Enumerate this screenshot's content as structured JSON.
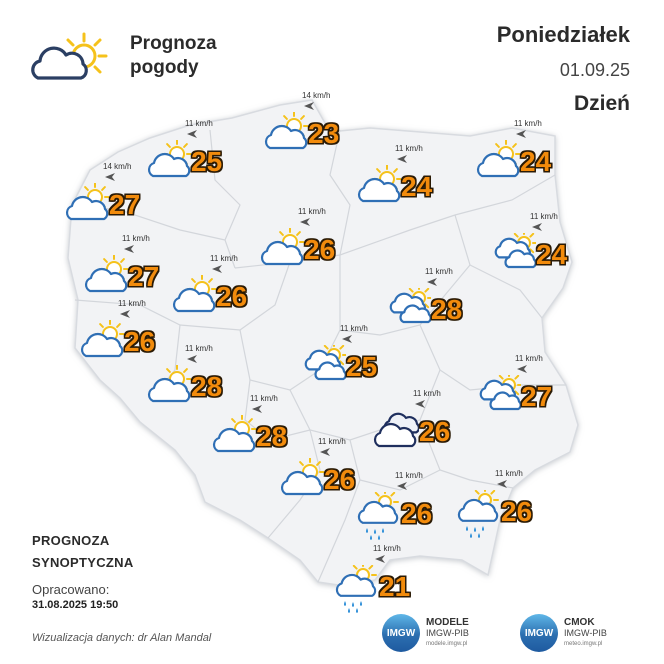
{
  "header": {
    "title_line1": "Prognoza",
    "title_line2": "pogody",
    "title_icon": "partly-cloudy-icon",
    "day": "Poniedziałek",
    "date": "01.09.25",
    "period": "Dzień"
  },
  "footer": {
    "synoptic_line1": "PROGNOZA",
    "synoptic_line2": "SYNOPTYCZNA",
    "prepared_label": "Opracowano:",
    "prepared_date": "31.08.2025 19:50",
    "credit": "Wizualizacja danych: dr Alan Mandal"
  },
  "logos": [
    {
      "name": "MODELE",
      "sub": "IMGW-PIB",
      "url": "modele.imgw.pl",
      "mark": "IMGW"
    },
    {
      "name": "CMOK",
      "sub": "IMGW-PIB",
      "url": "meteo.imgw.pl",
      "mark": "IMGW"
    }
  ],
  "colors": {
    "temperature_fill": "#f28b0c",
    "temperature_outline": "#2a1a05",
    "cloud_outline": "#2f6fb5",
    "sun": "#f5c21b",
    "map_fill": "#f2f3f5",
    "rain": "#2f8fd8"
  },
  "cities": [
    {
      "temp": "25",
      "wind": "11 km/h",
      "icon": "partly-cloudy-icon"
    },
    {
      "temp": "23",
      "wind": "14 km/h",
      "icon": "partly-cloudy-icon"
    },
    {
      "temp": "24",
      "wind": "11 km/h",
      "icon": "partly-cloudy-icon"
    },
    {
      "temp": "24",
      "wind": "11 km/h",
      "icon": "partly-cloudy-icon"
    },
    {
      "temp": "27",
      "wind": "14 km/h",
      "icon": "partly-cloudy-icon"
    },
    {
      "temp": "26",
      "wind": "11 km/h",
      "icon": "partly-cloudy-icon"
    },
    {
      "temp": "24",
      "wind": "11 km/h",
      "icon": "cloudy-sun-icon"
    },
    {
      "temp": "27",
      "wind": "11 km/h",
      "icon": "partly-cloudy-icon"
    },
    {
      "temp": "26",
      "wind": "11 km/h",
      "icon": "partly-cloudy-icon"
    },
    {
      "temp": "28",
      "wind": "11 km/h",
      "icon": "cloudy-sun-icon"
    },
    {
      "temp": "26",
      "wind": "11 km/h",
      "icon": "partly-cloudy-icon"
    },
    {
      "temp": "25",
      "wind": "11 km/h",
      "icon": "cloudy-sun-icon"
    },
    {
      "temp": "28",
      "wind": "11 km/h",
      "icon": "partly-cloudy-icon"
    },
    {
      "temp": "27",
      "wind": "11 km/h",
      "icon": "cloudy-sun-icon"
    },
    {
      "temp": "28",
      "wind": "11 km/h",
      "icon": "partly-cloudy-icon"
    },
    {
      "temp": "26",
      "wind": "11 km/h",
      "icon": "overcast-icon"
    },
    {
      "temp": "26",
      "wind": "11 km/h",
      "icon": "partly-cloudy-icon"
    },
    {
      "temp": "26",
      "wind": "11 km/h",
      "icon": "rain-sun-icon"
    },
    {
      "temp": "26",
      "wind": "11 km/h",
      "icon": "rain-sun-icon"
    },
    {
      "temp": "21",
      "wind": "11 km/h",
      "icon": "rain-sun-icon"
    }
  ]
}
